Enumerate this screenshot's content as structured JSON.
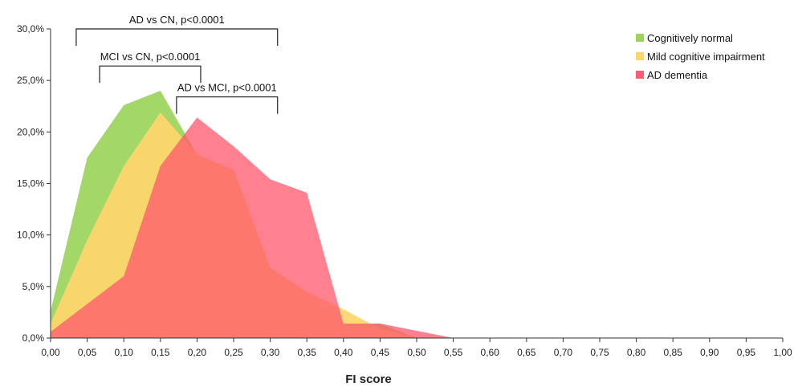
{
  "chart_data": {
    "type": "area",
    "xlabel": "FI score",
    "ylabel": "",
    "xlim": [
      0,
      1
    ],
    "ylim": [
      0,
      30
    ],
    "x_ticks": [
      "0,00",
      "0,05",
      "0,10",
      "0,15",
      "0,20",
      "0,25",
      "0,30",
      "0,35",
      "0,40",
      "0,45",
      "0,50",
      "0,55",
      "0,60",
      "0,65",
      "0,70",
      "0,75",
      "0,80",
      "0,85",
      "0,90",
      "0,95",
      "1,00"
    ],
    "y_ticks": [
      "0,0%",
      "5,0%",
      "10,0%",
      "15,0%",
      "20,0%",
      "25,0%",
      "30,0%"
    ],
    "legend_position": "top-right",
    "series": [
      {
        "name": "Cognitively normal",
        "color": "#9bd45a",
        "x": [
          0.0,
          0.05,
          0.1,
          0.15,
          0.2,
          0.25,
          0.3,
          0.35,
          0.4,
          0.45,
          0.5,
          0.55
        ],
        "values": [
          2.6,
          17.5,
          22.6,
          24.0,
          17.8,
          16.3,
          6.8,
          4.0,
          1.4,
          1.4,
          0.0,
          0.0
        ]
      },
      {
        "name": "Mild cognitive impairment",
        "color": "#ffd66b",
        "x": [
          0.0,
          0.05,
          0.1,
          0.15,
          0.2,
          0.25,
          0.3,
          0.35,
          0.4,
          0.45,
          0.5,
          0.55
        ],
        "values": [
          1.4,
          9.5,
          16.7,
          21.9,
          17.8,
          16.3,
          6.8,
          4.5,
          2.8,
          0.9,
          0.0,
          0.0
        ]
      },
      {
        "name": "AD dementia",
        "color": "#ff5c6e",
        "x": [
          0.0,
          0.05,
          0.1,
          0.15,
          0.2,
          0.25,
          0.3,
          0.35,
          0.4,
          0.45,
          0.5,
          0.55
        ],
        "values": [
          0.6,
          3.3,
          6.0,
          16.7,
          21.4,
          18.6,
          15.4,
          14.1,
          1.4,
          1.4,
          0.7,
          0.0
        ]
      }
    ],
    "annotations": [
      {
        "label": "AD vs CN, p<0.0001",
        "x1": 0.035,
        "x2": 0.31,
        "y": 30.0
      },
      {
        "label": "MCI vs CN, p<0.0001",
        "x1": 0.067,
        "x2": 0.205,
        "y": 26.4
      },
      {
        "label": "AD vs MCI, p<0.0001",
        "x1": 0.172,
        "x2": 0.31,
        "y": 23.4
      }
    ]
  }
}
